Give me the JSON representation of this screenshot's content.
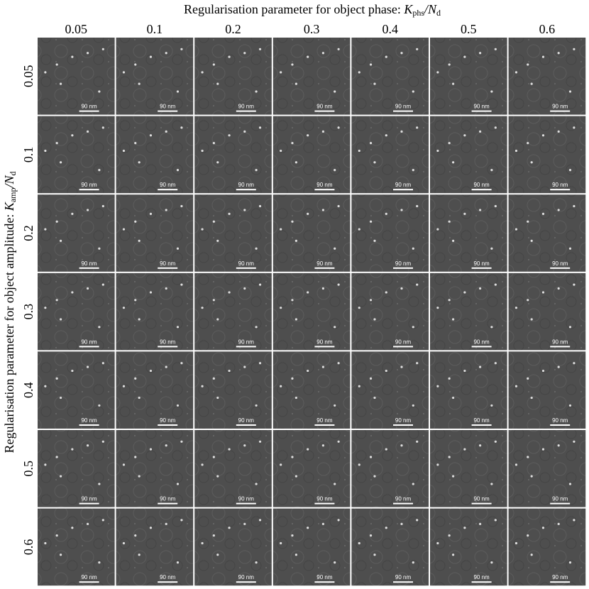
{
  "title": {
    "text": "Regularisation parameter for object phase:",
    "symbol": "K",
    "sub": "phs",
    "slash": "/N",
    "sub2": "d"
  },
  "y_title": {
    "text": "Regularisation parameter for object amplitude:",
    "symbol": "K",
    "sub": "amp",
    "slash": "/N",
    "sub2": "d"
  },
  "columns": [
    "0.05",
    "0.1",
    "0.2",
    "0.3",
    "0.4",
    "0.5",
    "0.6"
  ],
  "rows": [
    "0.05",
    "0.1",
    "0.2",
    "0.3",
    "0.4",
    "0.5",
    "0.6"
  ],
  "scale_bar": "90 nm"
}
